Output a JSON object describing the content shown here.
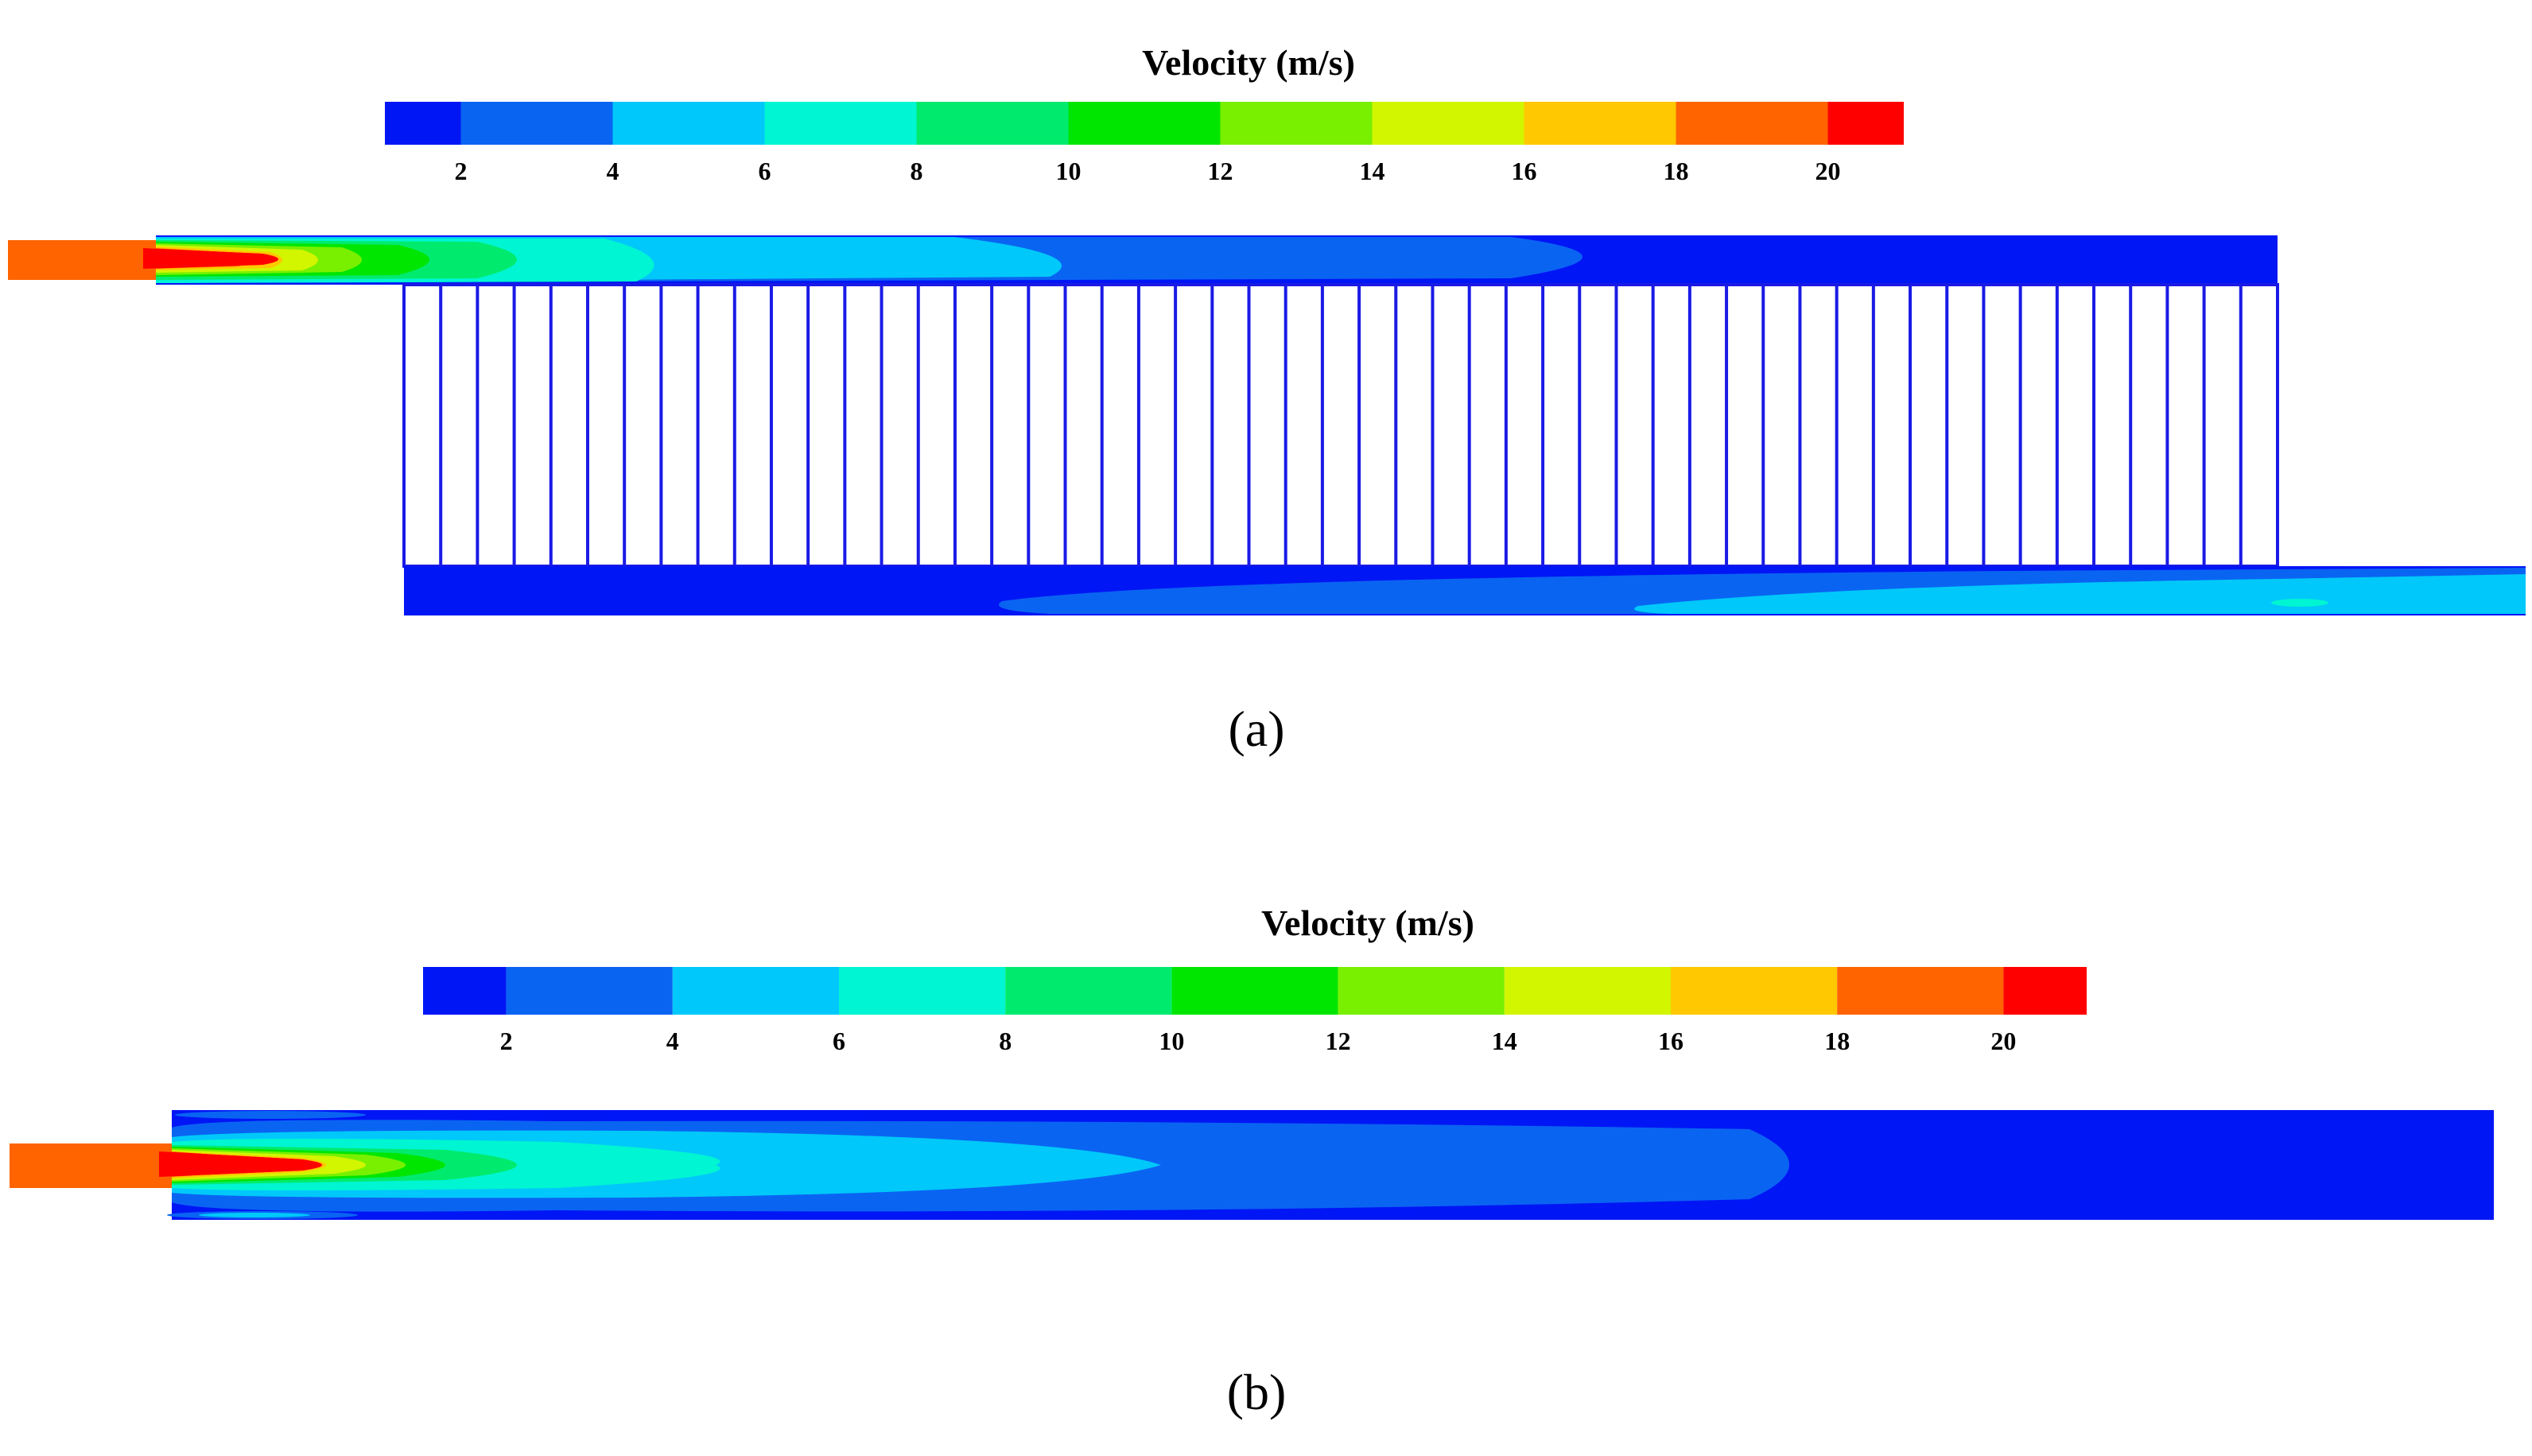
{
  "colorbar": {
    "title": "Velocity (m/s)",
    "min": 1,
    "max": 21,
    "ticks": [
      "2",
      "4",
      "6",
      "8",
      "10",
      "12",
      "14",
      "16",
      "18",
      "20"
    ],
    "tick_values": [
      2,
      4,
      6,
      8,
      10,
      12,
      14,
      16,
      18,
      20
    ],
    "bands": [
      {
        "from": 1,
        "to": 2,
        "color": "#0016f5"
      },
      {
        "from": 2,
        "to": 4,
        "color": "#0a64f2"
      },
      {
        "from": 4,
        "to": 6,
        "color": "#00c8fa"
      },
      {
        "from": 6,
        "to": 8,
        "color": "#00f5d2"
      },
      {
        "from": 8,
        "to": 10,
        "color": "#00eb6e"
      },
      {
        "from": 10,
        "to": 12,
        "color": "#00e600"
      },
      {
        "from": 12,
        "to": 14,
        "color": "#78f000"
      },
      {
        "from": 14,
        "to": 16,
        "color": "#d2f500"
      },
      {
        "from": 16,
        "to": 18,
        "color": "#ffc800"
      },
      {
        "from": 18,
        "to": 20,
        "color": "#ff6400"
      },
      {
        "from": 20,
        "to": 21,
        "color": "#ff0000"
      }
    ]
  },
  "panels": [
    {
      "label": "(a)",
      "channel_count": 51
    },
    {
      "label": "(b)"
    }
  ],
  "colors": {
    "v1": "#0016f5",
    "v2": "#0a64f2",
    "v3": "#00c8fa",
    "v4": "#00f5d2",
    "v5": "#00eb6e",
    "v6": "#00e600",
    "v7": "#78f000",
    "v8": "#d2f500",
    "v9": "#ffc800",
    "v10": "#ff6400",
    "v11": "#ff0000",
    "wall": "#1a1ae6"
  }
}
